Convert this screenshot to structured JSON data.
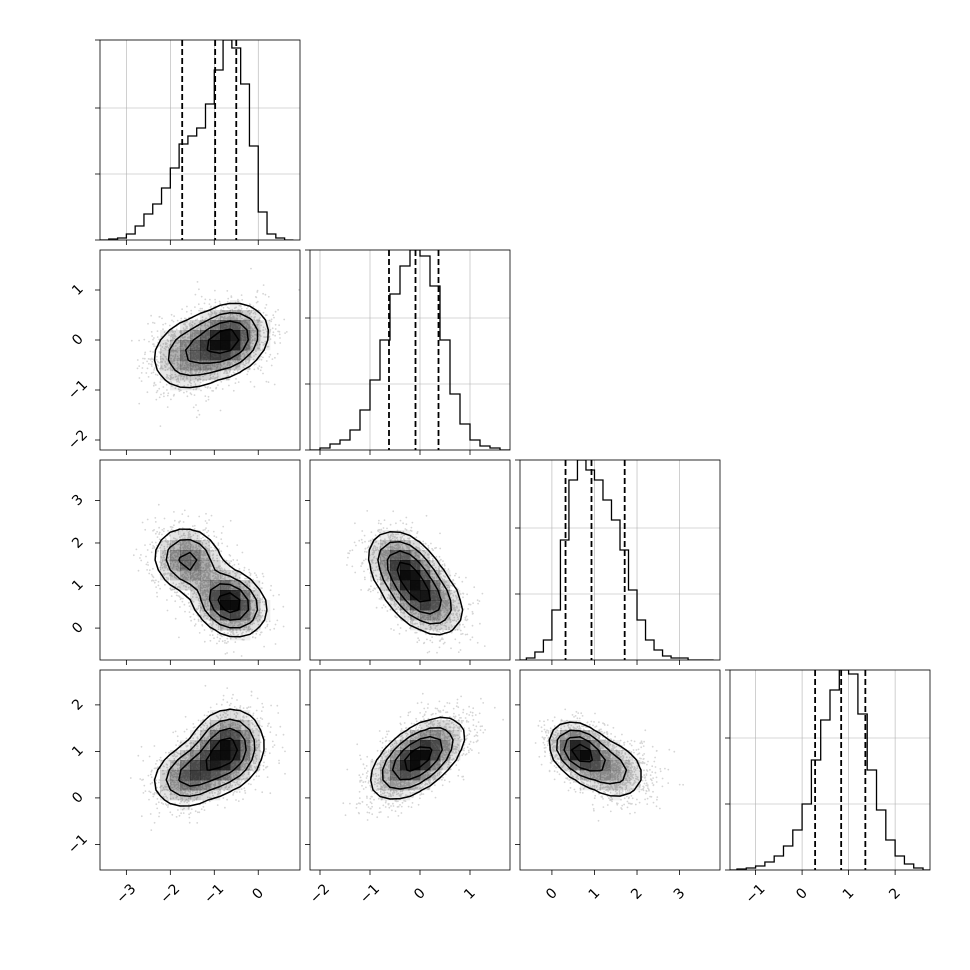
{
  "chart_data": {
    "type": "corner",
    "grid": true,
    "style": {
      "hist_color": "#000000",
      "contour_color": "#000000",
      "grid_color": "#b0b0b0",
      "point_color": "#888888",
      "density_color": "#000000"
    },
    "parameters": [
      {
        "range": [
          -3.6,
          0.95
        ],
        "ticks": [
          -3,
          -2,
          -1,
          0
        ],
        "tick_labels": [
          "−3",
          "−2",
          "−1",
          "0"
        ],
        "hist_ticks": [
          0,
          0.33,
          0.66,
          1.0
        ],
        "quantiles": [
          -1.73,
          -0.98,
          -0.5
        ],
        "histogram": {
          "bin_width": 0.2,
          "bin_starts": [
            -3.6,
            -3.4,
            -3.2,
            -3.0,
            -2.8,
            -2.6,
            -2.4,
            -2.2,
            -2.0,
            -1.8,
            -1.6,
            -1.4,
            -1.2,
            -1.0,
            -0.8,
            -0.6,
            -0.4,
            -0.2,
            0.0,
            0.2,
            0.4,
            0.6
          ],
          "counts": [
            0.0,
            0.005,
            0.01,
            0.03,
            0.07,
            0.13,
            0.18,
            0.26,
            0.36,
            0.48,
            0.52,
            0.56,
            0.68,
            0.85,
            1.0,
            0.96,
            0.78,
            0.47,
            0.14,
            0.03,
            0.01,
            0.0
          ]
        }
      },
      {
        "range": [
          -2.2,
          1.8
        ],
        "ticks": [
          -2,
          -1,
          0,
          1
        ],
        "tick_labels": [
          "−2",
          "−1",
          "0",
          "1"
        ],
        "hist_ticks": [
          0,
          0.33,
          0.66,
          1.0
        ],
        "quantiles": [
          -0.62,
          -0.09,
          0.37
        ],
        "histogram": {
          "bin_width": 0.2,
          "bin_starts": [
            -2.2,
            -2.0,
            -1.8,
            -1.6,
            -1.4,
            -1.2,
            -1.0,
            -0.8,
            -0.6,
            -0.4,
            -0.2,
            0.0,
            0.2,
            0.4,
            0.6,
            0.8,
            1.0,
            1.2,
            1.4,
            1.6
          ],
          "counts": [
            0.0,
            0.01,
            0.03,
            0.05,
            0.1,
            0.2,
            0.35,
            0.55,
            0.78,
            0.92,
            1.0,
            0.97,
            0.82,
            0.55,
            0.28,
            0.13,
            0.05,
            0.02,
            0.01,
            0.0
          ]
        }
      },
      {
        "range": [
          -0.75,
          3.95
        ],
        "ticks": [
          0,
          1,
          2,
          3
        ],
        "tick_labels": [
          "0",
          "1",
          "2",
          "3"
        ],
        "hist_ticks": [
          0,
          0.33,
          0.66,
          1.0
        ],
        "quantiles": [
          0.32,
          0.93,
          1.71
        ],
        "histogram": {
          "bin_width": 0.2,
          "bin_starts": [
            -0.8,
            -0.6,
            -0.4,
            -0.2,
            0.0,
            0.2,
            0.4,
            0.6,
            0.8,
            1.0,
            1.2,
            1.4,
            1.6,
            1.8,
            2.0,
            2.2,
            2.4,
            2.6,
            2.8,
            3.0,
            3.2,
            3.4,
            3.6
          ],
          "counts": [
            0.0,
            0.01,
            0.04,
            0.1,
            0.25,
            0.6,
            0.9,
            1.0,
            0.95,
            0.9,
            0.8,
            0.7,
            0.55,
            0.35,
            0.2,
            0.1,
            0.05,
            0.02,
            0.01,
            0.01,
            0.0,
            0.0,
            0.0
          ]
        }
      },
      {
        "range": [
          -1.55,
          2.75
        ],
        "ticks": [
          -1,
          0,
          1,
          2
        ],
        "tick_labels": [
          "−1",
          "0",
          "1",
          "2"
        ],
        "hist_ticks": [
          0,
          0.33,
          0.66,
          1.0
        ],
        "quantiles": [
          0.28,
          0.84,
          1.36
        ],
        "histogram": {
          "bin_width": 0.2,
          "bin_starts": [
            -1.6,
            -1.4,
            -1.2,
            -1.0,
            -0.8,
            -0.6,
            -0.4,
            -0.2,
            0.0,
            0.2,
            0.4,
            0.6,
            0.8,
            1.0,
            1.2,
            1.4,
            1.6,
            1.8,
            2.0,
            2.2,
            2.4,
            2.6
          ],
          "counts": [
            0.0,
            0.005,
            0.01,
            0.02,
            0.04,
            0.07,
            0.12,
            0.2,
            0.33,
            0.55,
            0.75,
            0.9,
            1.0,
            0.98,
            0.78,
            0.5,
            0.3,
            0.15,
            0.07,
            0.03,
            0.01,
            0.0
          ]
        }
      }
    ],
    "pairs": [
      {
        "x": 0,
        "y": 1,
        "components": [
          {
            "mx": -0.7,
            "my": 0.0,
            "sx": 0.45,
            "sy": 0.35,
            "rho": 0.2,
            "w": 0.65
          },
          {
            "mx": -1.6,
            "my": -0.3,
            "sx": 0.45,
            "sy": 0.38,
            "rho": 0.1,
            "w": 0.35
          }
        ]
      },
      {
        "x": 0,
        "y": 2,
        "components": [
          {
            "mx": -0.65,
            "my": 0.6,
            "sx": 0.4,
            "sy": 0.38,
            "rho": -0.2,
            "w": 0.6
          },
          {
            "mx": -1.6,
            "my": 1.6,
            "sx": 0.4,
            "sy": 0.4,
            "rho": -0.1,
            "w": 0.4
          }
        ]
      },
      {
        "x": 0,
        "y": 3,
        "components": [
          {
            "mx": -0.7,
            "my": 1.05,
            "sx": 0.4,
            "sy": 0.42,
            "rho": 0.1,
            "w": 0.6
          },
          {
            "mx": -1.5,
            "my": 0.5,
            "sx": 0.45,
            "sy": 0.35,
            "rho": 0.25,
            "w": 0.4
          }
        ]
      },
      {
        "x": 1,
        "y": 2,
        "components": [
          {
            "mx": 0.05,
            "my": 0.75,
            "sx": 0.4,
            "sy": 0.45,
            "rho": -0.4,
            "w": 0.6
          },
          {
            "mx": -0.35,
            "my": 1.5,
            "sx": 0.35,
            "sy": 0.4,
            "rho": -0.3,
            "w": 0.4
          }
        ]
      },
      {
        "x": 1,
        "y": 3,
        "components": [
          {
            "mx": -0.05,
            "my": 0.85,
            "sx": 0.45,
            "sy": 0.42,
            "rho": 0.55,
            "w": 1.0
          }
        ]
      },
      {
        "x": 2,
        "y": 3,
        "components": [
          {
            "mx": 0.65,
            "my": 1.0,
            "sx": 0.35,
            "sy": 0.3,
            "rho": -0.3,
            "w": 0.6
          },
          {
            "mx": 1.4,
            "my": 0.6,
            "sx": 0.45,
            "sy": 0.35,
            "rho": -0.2,
            "w": 0.4
          }
        ]
      }
    ]
  }
}
